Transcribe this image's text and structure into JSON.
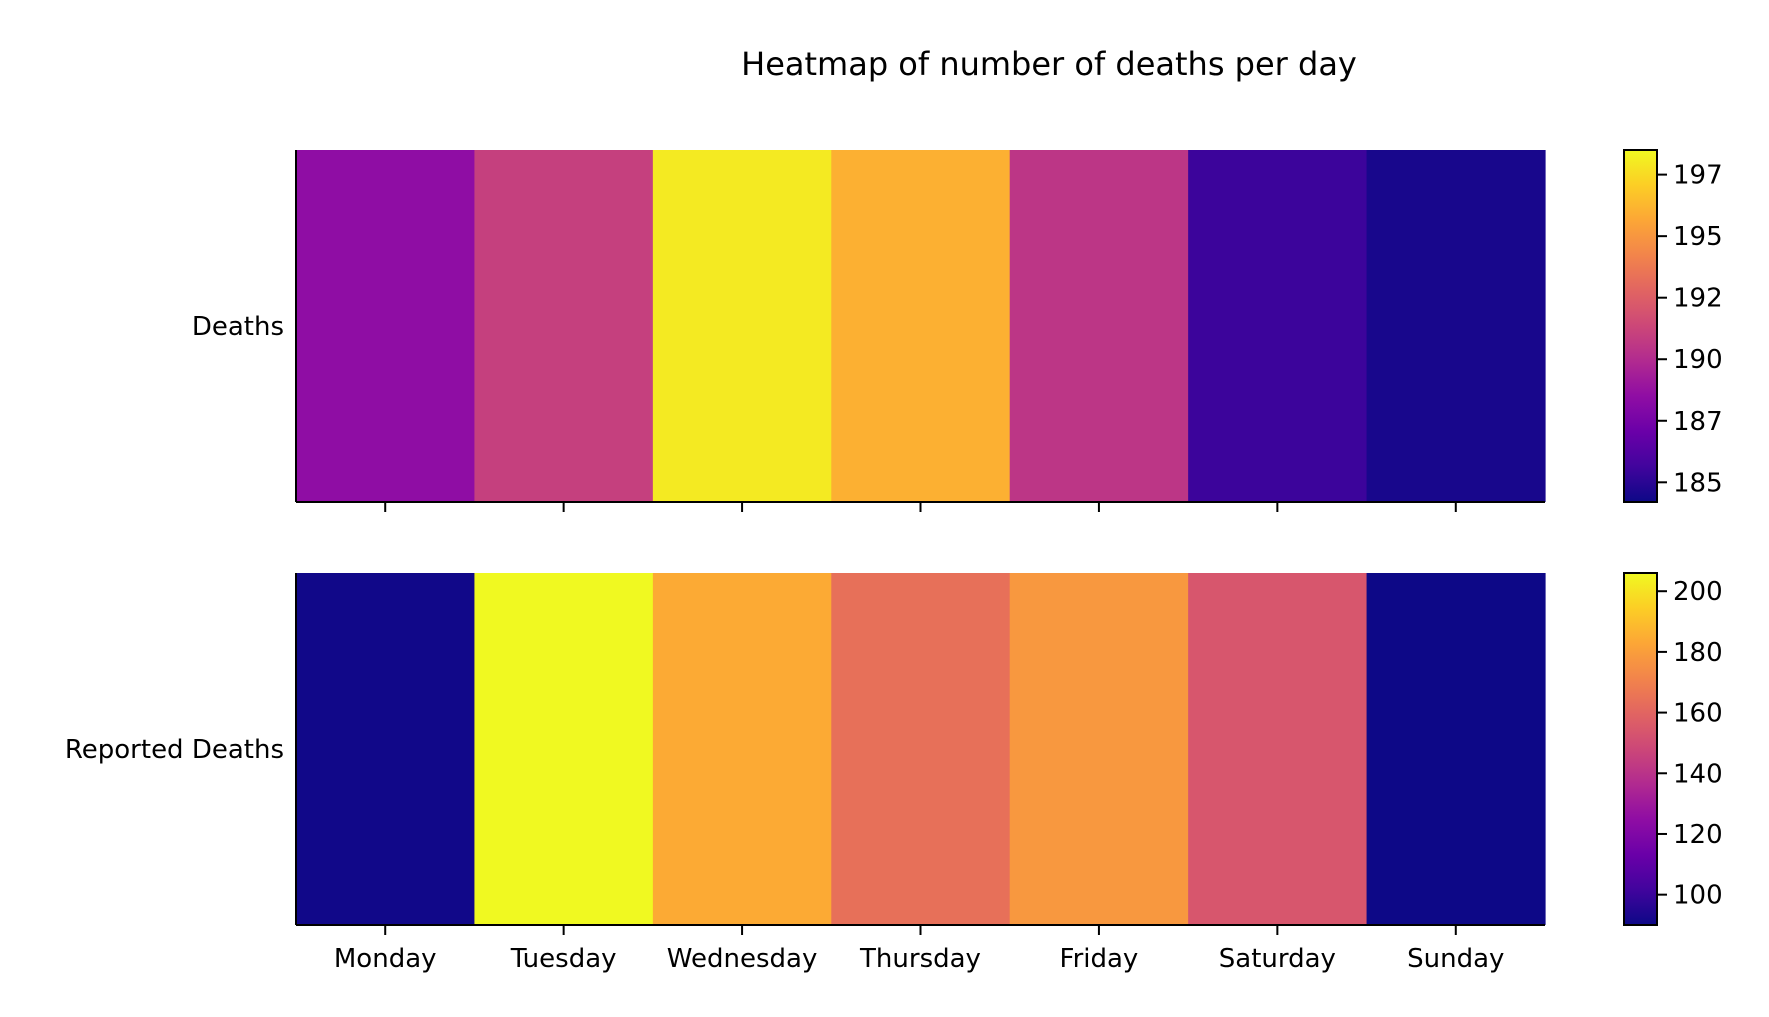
{
  "chart_data": {
    "type": "heatmap",
    "title": "Heatmap of number of deaths per day",
    "colormap": "plasma",
    "categories": [
      "Monday",
      "Tuesday",
      "Wednesday",
      "Thursday",
      "Friday",
      "Saturday",
      "Sunday"
    ],
    "panels": [
      {
        "row_label": "Deaths",
        "values": [
          188.5,
          191,
          198,
          196,
          190.5,
          185.5,
          184.5
        ],
        "color_range": [
          184.2,
          198.5
        ],
        "colorbar_ticks": [
          "185",
          "187",
          "190",
          "192",
          "195",
          "197"
        ],
        "colorbar_tick_values": [
          185,
          187.5,
          190,
          192.5,
          195,
          197.5
        ],
        "x_tick_labels_shown": false
      },
      {
        "row_label": "Reported Deaths",
        "values": [
          91,
          206,
          184,
          164,
          178,
          154,
          90
        ],
        "color_range": [
          90,
          206
        ],
        "colorbar_ticks": [
          "100",
          "120",
          "140",
          "160",
          "180",
          "200"
        ],
        "colorbar_tick_values": [
          100,
          120,
          140,
          160,
          180,
          200
        ],
        "x_tick_labels_shown": true
      }
    ],
    "xlabel": "",
    "ylabel": "",
    "grid": false,
    "legend": "colorbar-right"
  }
}
